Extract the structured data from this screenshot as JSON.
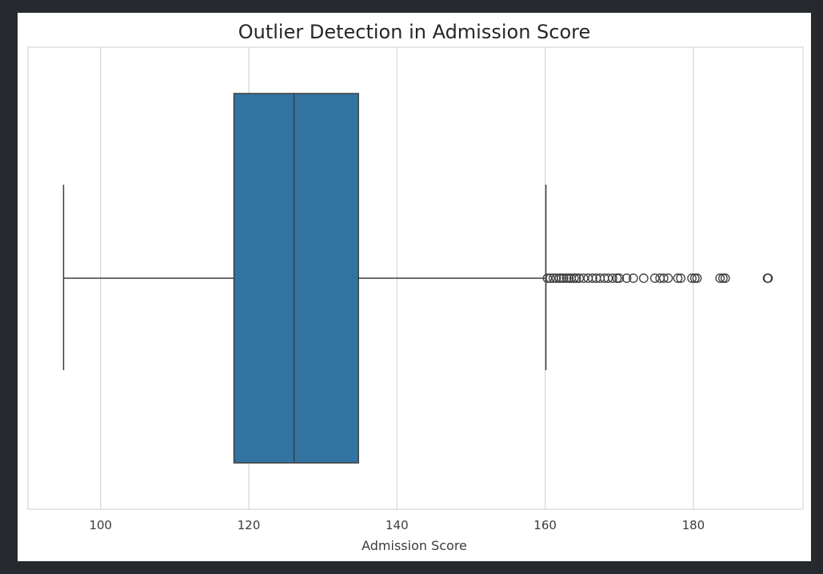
{
  "chart_data": {
    "type": "box",
    "title": "Outlier Detection in Admission Score",
    "xlabel": "Admission Score",
    "ylabel": "",
    "xlim": [
      90.2,
      194.8
    ],
    "xticks": [
      100,
      120,
      140,
      160,
      180
    ],
    "grid": true,
    "orientation": "horizontal",
    "box": {
      "whisker_low": 95.0,
      "q1": 118.0,
      "median": 126.1,
      "q3": 134.8,
      "whisker_high": 160.1,
      "outliers": [
        160.3,
        160.7,
        161.1,
        161.5,
        161.9,
        162.2,
        162.5,
        162.9,
        163.2,
        163.5,
        163.9,
        164.2,
        164.6,
        165.2,
        165.8,
        166.4,
        166.9,
        167.4,
        168.0,
        168.5,
        169.1,
        169.7,
        170.0,
        171.0,
        171.9,
        173.3,
        174.8,
        175.5,
        176.0,
        176.6,
        177.9,
        178.3,
        179.8,
        180.2,
        180.5,
        183.6,
        184.0,
        184.3,
        190.0,
        190.1
      ],
      "color": "#3274a1",
      "line_color": "#3d3d3d"
    },
    "grid_color": "#cccccc"
  }
}
